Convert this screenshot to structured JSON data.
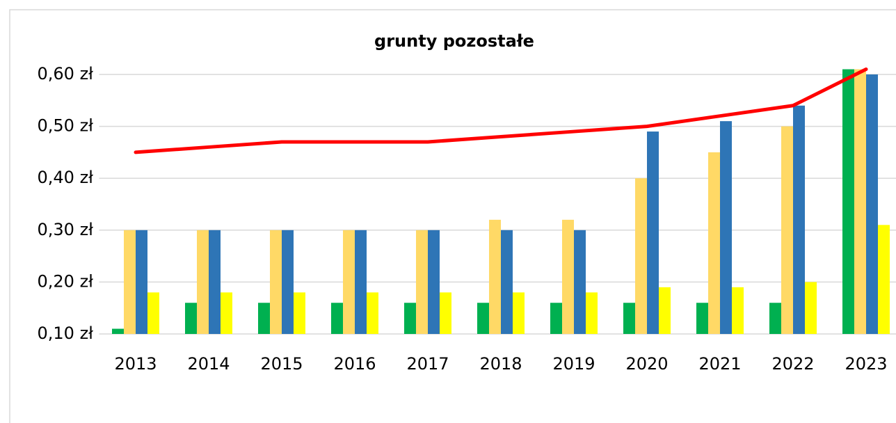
{
  "chart_data": {
    "type": "bar",
    "title": "grunty pozostałe",
    "categories": [
      "2013",
      "2014",
      "2015",
      "2016",
      "2017",
      "2018",
      "2019",
      "2020",
      "2021",
      "2022",
      "2023"
    ],
    "series": [
      {
        "type": "bar",
        "color": "#00b050",
        "values": [
          0.11,
          0.16,
          0.16,
          0.16,
          0.16,
          0.16,
          0.16,
          0.16,
          0.16,
          0.16,
          0.61
        ]
      },
      {
        "type": "bar",
        "color": "#ffd966",
        "values": [
          0.3,
          0.3,
          0.3,
          0.3,
          0.3,
          0.32,
          0.32,
          0.4,
          0.45,
          0.5,
          0.61
        ]
      },
      {
        "type": "bar",
        "color": "#2e75b6",
        "values": [
          0.3,
          0.3,
          0.3,
          0.3,
          0.3,
          0.3,
          0.3,
          0.49,
          0.51,
          0.54,
          0.6
        ]
      },
      {
        "type": "bar",
        "color": "#ffff00",
        "values": [
          0.18,
          0.18,
          0.18,
          0.18,
          0.18,
          0.18,
          0.18,
          0.19,
          0.19,
          0.2,
          0.31
        ]
      },
      {
        "type": "line",
        "color": "#ff0000",
        "values": [
          0.45,
          0.46,
          0.47,
          0.47,
          0.47,
          0.48,
          0.49,
          0.5,
          0.52,
          0.54,
          0.61
        ]
      }
    ],
    "ylim": [
      0.1,
      0.6
    ],
    "yticks": [
      {
        "value": 0.1,
        "label": "0,10 zł"
      },
      {
        "value": 0.2,
        "label": "0,20 zł"
      },
      {
        "value": 0.3,
        "label": "0,30 zł"
      },
      {
        "value": 0.4,
        "label": "0,40 zł"
      },
      {
        "value": 0.5,
        "label": "0,50 zł"
      },
      {
        "value": 0.6,
        "label": "0,60 zł"
      }
    ],
    "grid": true
  }
}
